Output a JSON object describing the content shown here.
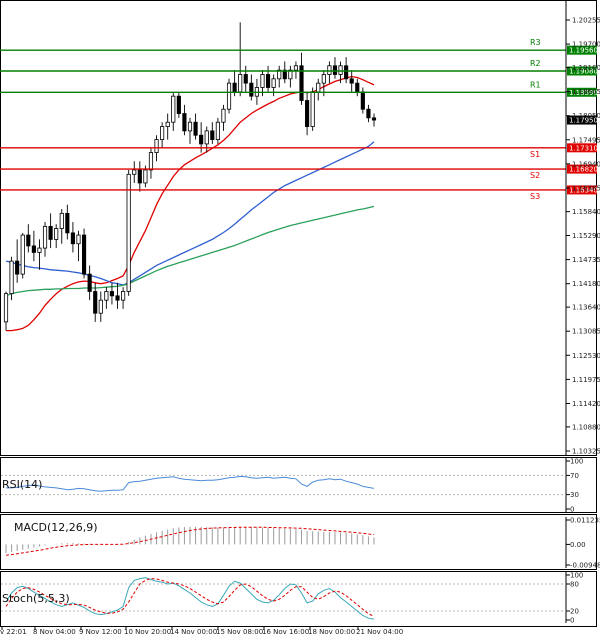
{
  "chart_data": {
    "type": "candlestick",
    "instrument": "EURUSD",
    "timeframe": "H4",
    "x_labels": [
      "v 22:01",
      "8 Nov 04:00",
      "9 Nov 12:00",
      "10 Nov 20:00",
      "14 Nov 00:00",
      "15 Nov 08:00",
      "16 Nov 16:00",
      "18 Nov 00:00",
      "21 Nov 04:00"
    ],
    "price_ticks": [
      "1.20255",
      "1.19700",
      "1.19160",
      "1.18605",
      "1.18050",
      "1.17495",
      "1.16940",
      "1.16385",
      "1.15840",
      "1.15290",
      "1.14735",
      "1.14180",
      "1.13640",
      "1.13085",
      "1.12530",
      "1.11975",
      "1.11420",
      "1.10880",
      "1.10325"
    ],
    "ylim": [
      1.10325,
      1.20255
    ],
    "current_price": "1.17950",
    "levels": [
      {
        "name": "R3",
        "value": "1.19560",
        "color": "#008000"
      },
      {
        "name": "R2",
        "value": "1.19080",
        "color": "#008000"
      },
      {
        "name": "R1",
        "value": "1.18590",
        "color": "#008000"
      },
      {
        "name": "S1",
        "value": "1.17310",
        "color": "#e00000"
      },
      {
        "name": "S2",
        "value": "1.16820",
        "color": "#e00000"
      },
      {
        "name": "S3",
        "value": "1.16340",
        "color": "#e00000"
      }
    ],
    "candles": [
      [
        1.133,
        1.14,
        1.131,
        1.1395
      ],
      [
        1.1395,
        1.148,
        1.138,
        1.147
      ],
      [
        1.147,
        1.152,
        1.142,
        1.144
      ],
      [
        1.144,
        1.1535,
        1.143,
        1.153
      ],
      [
        1.153,
        1.1555,
        1.149,
        1.1505
      ],
      [
        1.1505,
        1.154,
        1.147,
        1.149
      ],
      [
        1.149,
        1.152,
        1.145,
        1.15
      ],
      [
        1.15,
        1.156,
        1.148,
        1.155
      ],
      [
        1.155,
        1.158,
        1.15,
        1.152
      ],
      [
        1.152,
        1.1555,
        1.15,
        1.1545
      ],
      [
        1.1545,
        1.159,
        1.151,
        1.158
      ],
      [
        1.158,
        1.16,
        1.152,
        1.1535
      ],
      [
        1.1535,
        1.156,
        1.149,
        1.151
      ],
      [
        1.151,
        1.154,
        1.147,
        1.153
      ],
      [
        1.153,
        1.1545,
        1.143,
        1.144
      ],
      [
        1.144,
        1.146,
        1.138,
        1.14
      ],
      [
        1.14,
        1.142,
        1.133,
        1.135
      ],
      [
        1.135,
        1.14,
        1.133,
        1.138
      ],
      [
        1.138,
        1.141,
        1.136,
        1.14
      ],
      [
        1.14,
        1.142,
        1.137,
        1.139
      ],
      [
        1.139,
        1.142,
        1.136,
        1.138
      ],
      [
        1.138,
        1.141,
        1.136,
        1.14
      ],
      [
        1.14,
        1.168,
        1.139,
        1.167
      ],
      [
        1.167,
        1.17,
        1.165,
        1.168
      ],
      [
        1.168,
        1.17,
        1.163,
        1.165
      ],
      [
        1.165,
        1.169,
        1.164,
        1.168
      ],
      [
        1.168,
        1.173,
        1.166,
        1.172
      ],
      [
        1.172,
        1.176,
        1.17,
        1.175
      ],
      [
        1.175,
        1.179,
        1.173,
        1.178
      ],
      [
        1.178,
        1.181,
        1.175,
        1.179
      ],
      [
        1.179,
        1.186,
        1.177,
        1.185
      ],
      [
        1.185,
        1.186,
        1.18,
        1.181
      ],
      [
        1.181,
        1.183,
        1.176,
        1.177
      ],
      [
        1.177,
        1.18,
        1.174,
        1.179
      ],
      [
        1.179,
        1.181,
        1.175,
        1.176
      ],
      [
        1.176,
        1.179,
        1.172,
        1.174
      ],
      [
        1.174,
        1.178,
        1.172,
        1.177
      ],
      [
        1.177,
        1.179,
        1.174,
        1.175
      ],
      [
        1.175,
        1.18,
        1.174,
        1.179
      ],
      [
        1.179,
        1.183,
        1.177,
        1.182
      ],
      [
        1.182,
        1.189,
        1.181,
        1.188
      ],
      [
        1.188,
        1.191,
        1.185,
        1.186
      ],
      [
        1.186,
        1.202,
        1.185,
        1.19
      ],
      [
        1.19,
        1.192,
        1.186,
        1.188
      ],
      [
        1.188,
        1.19,
        1.184,
        1.185
      ],
      [
        1.185,
        1.189,
        1.183,
        1.187
      ],
      [
        1.187,
        1.191,
        1.185,
        1.19
      ],
      [
        1.19,
        1.192,
        1.186,
        1.187
      ],
      [
        1.187,
        1.19,
        1.185,
        1.189
      ],
      [
        1.189,
        1.192,
        1.187,
        1.191
      ],
      [
        1.191,
        1.193,
        1.188,
        1.189
      ],
      [
        1.189,
        1.192,
        1.187,
        1.191
      ],
      [
        1.191,
        1.193,
        1.189,
        1.192
      ],
      [
        1.192,
        1.195,
        1.183,
        1.184
      ],
      [
        1.184,
        1.186,
        1.176,
        1.178
      ],
      [
        1.178,
        1.187,
        1.177,
        1.186
      ],
      [
        1.186,
        1.189,
        1.184,
        1.188
      ],
      [
        1.188,
        1.191,
        1.185,
        1.19
      ],
      [
        1.19,
        1.193,
        1.188,
        1.192
      ],
      [
        1.192,
        1.194,
        1.189,
        1.19
      ],
      [
        1.19,
        1.193,
        1.188,
        1.192
      ],
      [
        1.192,
        1.194,
        1.188,
        1.189
      ],
      [
        1.189,
        1.191,
        1.186,
        1.188
      ],
      [
        1.188,
        1.189,
        1.185,
        1.186
      ],
      [
        1.186,
        1.187,
        1.181,
        1.182
      ],
      [
        1.182,
        1.183,
        1.179,
        1.18
      ],
      [
        1.18,
        1.181,
        1.178,
        1.1795
      ]
    ],
    "series": [
      {
        "name": "MA red",
        "color": "#e00000",
        "values": [
          1.131,
          1.131,
          1.1312,
          1.1315,
          1.1322,
          1.1335,
          1.135,
          1.1368,
          1.1382,
          1.1395,
          1.1405,
          1.1412,
          1.1418,
          1.1422,
          1.1424,
          1.1423,
          1.142,
          1.1418,
          1.142,
          1.1425,
          1.143,
          1.1436,
          1.146,
          1.149,
          1.1515,
          1.154,
          1.157,
          1.16,
          1.1625,
          1.1645,
          1.1665,
          1.168,
          1.1692,
          1.17,
          1.1708,
          1.1715,
          1.1722,
          1.173,
          1.1738,
          1.1748,
          1.176,
          1.1775,
          1.179,
          1.18,
          1.181,
          1.1818,
          1.1825,
          1.1832,
          1.1838,
          1.1845,
          1.185,
          1.1855,
          1.1858,
          1.186,
          1.1858,
          1.186,
          1.1865,
          1.1872,
          1.1878,
          1.1884,
          1.1888,
          1.1892,
          1.1895,
          1.1893,
          1.1888,
          1.1882,
          1.1876
        ]
      },
      {
        "name": "MA blue",
        "color": "#2f5fd0",
        "values": [
          1.147,
          1.1467,
          1.1463,
          1.146,
          1.1457,
          1.1455,
          1.1454,
          1.1452,
          1.145,
          1.1449,
          1.1448,
          1.1447,
          1.1445,
          1.1443,
          1.144,
          1.1437,
          1.1434,
          1.143,
          1.1425,
          1.142,
          1.1418,
          1.1415,
          1.142,
          1.1428,
          1.1436,
          1.1444,
          1.1452,
          1.146,
          1.1466,
          1.1472,
          1.1478,
          1.1484,
          1.149,
          1.1496,
          1.1502,
          1.1508,
          1.1514,
          1.152,
          1.1528,
          1.1536,
          1.1545,
          1.1555,
          1.1566,
          1.1577,
          1.1588,
          1.1598,
          1.1608,
          1.1618,
          1.1628,
          1.1636,
          1.1644,
          1.165,
          1.1656,
          1.1662,
          1.1668,
          1.1674,
          1.168,
          1.1686,
          1.1692,
          1.1698,
          1.1704,
          1.171,
          1.1716,
          1.1722,
          1.1728,
          1.1734,
          1.1745
        ]
      },
      {
        "name": "MA green",
        "color": "#2aa05a",
        "values": [
          1.139,
          1.1395,
          1.1398,
          1.14,
          1.1402,
          1.1403,
          1.1404,
          1.1405,
          1.1405,
          1.1406,
          1.1406,
          1.1407,
          1.1407,
          1.1407,
          1.1408,
          1.1408,
          1.1408,
          1.1409,
          1.141,
          1.1411,
          1.1412,
          1.1414,
          1.1418,
          1.1424,
          1.143,
          1.1436,
          1.1442,
          1.1448,
          1.1453,
          1.1458,
          1.1462,
          1.1466,
          1.147,
          1.1474,
          1.1478,
          1.1482,
          1.1486,
          1.149,
          1.1494,
          1.1498,
          1.1502,
          1.1506,
          1.1511,
          1.1516,
          1.1521,
          1.1526,
          1.1531,
          1.1536,
          1.154,
          1.1544,
          1.1548,
          1.1552,
          1.1555,
          1.1558,
          1.1561,
          1.1564,
          1.1567,
          1.157,
          1.1573,
          1.1576,
          1.1579,
          1.1582,
          1.1585,
          1.1588,
          1.159,
          1.1593,
          1.1596
        ]
      }
    ],
    "rsi": {
      "label": "RSI(14)",
      "ticks": [
        "100",
        "70",
        "30",
        "0"
      ],
      "ylim": [
        0,
        100
      ],
      "values": [
        44,
        44,
        45,
        47,
        49,
        50,
        48,
        46,
        45,
        44,
        42,
        40,
        41,
        43,
        42,
        40,
        38,
        37,
        38,
        39,
        39,
        40,
        55,
        57,
        58,
        60,
        62,
        64,
        65,
        66,
        67,
        64,
        62,
        61,
        60,
        59,
        60,
        60,
        61,
        63,
        65,
        66,
        68,
        67,
        65,
        64,
        65,
        66,
        64,
        65,
        66,
        64,
        63,
        52,
        47,
        56,
        60,
        61,
        63,
        61,
        62,
        58,
        55,
        52,
        47,
        45,
        43
      ]
    },
    "macd": {
      "label": "MACD(12,26,9)",
      "ticks": [
        "0.011235",
        "0.00",
        "-0.009486"
      ],
      "ylim": [
        -0.009486,
        0.011235
      ],
      "histogram": [
        -0.004,
        -0.0035,
        -0.003,
        -0.0025,
        -0.002,
        -0.0015,
        -0.001,
        -0.0005,
        0.0,
        0.0003,
        0.0005,
        0.0006,
        0.0006,
        0.0005,
        0.0004,
        0.0003,
        0.0002,
        0.0001,
        0.0001,
        0.0001,
        0.0001,
        0.0002,
        0.0012,
        0.0022,
        0.0032,
        0.004,
        0.0048,
        0.0056,
        0.0062,
        0.0068,
        0.0074,
        0.0078,
        0.008,
        0.0081,
        0.0081,
        0.008,
        0.0079,
        0.0078,
        0.0077,
        0.0077,
        0.0078,
        0.0079,
        0.008,
        0.008,
        0.0079,
        0.0078,
        0.0077,
        0.0076,
        0.0075,
        0.0074,
        0.0073,
        0.0072,
        0.0071,
        0.0068,
        0.0062,
        0.006,
        0.0059,
        0.0058,
        0.0057,
        0.0056,
        0.0055,
        0.0053,
        0.005,
        0.0047,
        0.0042,
        0.0037,
        0.0032
      ],
      "signal": [
        -0.005,
        -0.0047,
        -0.0043,
        -0.0039,
        -0.0035,
        -0.0031,
        -0.0027,
        -0.0022,
        -0.0017,
        -0.0013,
        -0.0009,
        -0.0006,
        -0.0004,
        -0.0002,
        -0.0001,
        0.0,
        0.0,
        0.0,
        0.0,
        0.0,
        0.0,
        0.0001,
        0.0004,
        0.0008,
        0.0013,
        0.0018,
        0.0024,
        0.003,
        0.0036,
        0.0042,
        0.0048,
        0.0054,
        0.0059,
        0.0064,
        0.0068,
        0.0071,
        0.0073,
        0.0075,
        0.0076,
        0.0077,
        0.0078,
        0.0078,
        0.0079,
        0.0079,
        0.0079,
        0.0079,
        0.0079,
        0.0078,
        0.0078,
        0.0077,
        0.0077,
        0.0076,
        0.0075,
        0.0074,
        0.0072,
        0.007,
        0.0068,
        0.0066,
        0.0064,
        0.0062,
        0.006,
        0.0058,
        0.0056,
        0.0054,
        0.0051,
        0.0048,
        0.0045
      ]
    },
    "stoch": {
      "label": "Stoch(5,5,3)",
      "ticks": [
        "100",
        "80",
        "20",
        "0"
      ],
      "ylim": [
        0,
        100
      ],
      "k": [
        40,
        60,
        72,
        75,
        70,
        62,
        55,
        48,
        40,
        34,
        30,
        34,
        38,
        33,
        28,
        20,
        14,
        12,
        14,
        18,
        22,
        30,
        72,
        88,
        92,
        94,
        90,
        86,
        84,
        80,
        82,
        76,
        68,
        60,
        50,
        40,
        34,
        30,
        36,
        55,
        75,
        86,
        82,
        70,
        58,
        46,
        40,
        38,
        44,
        56,
        70,
        80,
        78,
        60,
        38,
        42,
        58,
        66,
        70,
        62,
        50,
        40,
        30,
        20,
        10,
        4,
        2
      ],
      "d": [
        30,
        48,
        62,
        70,
        72,
        68,
        62,
        55,
        48,
        41,
        36,
        34,
        34,
        35,
        33,
        28,
        22,
        18,
        15,
        15,
        18,
        24,
        40,
        60,
        80,
        88,
        92,
        91,
        88,
        84,
        82,
        80,
        76,
        70,
        62,
        54,
        46,
        40,
        36,
        40,
        52,
        66,
        78,
        80,
        74,
        64,
        54,
        46,
        42,
        46,
        55,
        66,
        74,
        74,
        62,
        50,
        46,
        52,
        60,
        64,
        62,
        54,
        44,
        34,
        24,
        14,
        8
      ]
    }
  }
}
